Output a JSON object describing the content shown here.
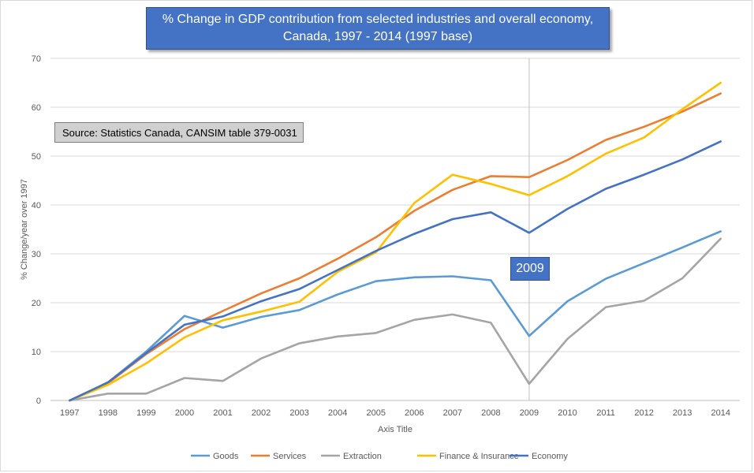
{
  "chart_data": {
    "type": "line",
    "title_line1": "% Change in GDP contribution from selected industries and overall economy,",
    "title_line2": "Canada, 1997 - 2014 (1997 base)",
    "source_note": "Source: Statistics Canada, CANSIM table  379-0031",
    "callout": "2009",
    "xlabel": "Axis Title",
    "ylabel": "% Change/year over 1997",
    "ylim": [
      0,
      70
    ],
    "yticks": [
      0,
      10,
      20,
      30,
      40,
      50,
      60,
      70
    ],
    "categories": [
      "1997",
      "1998",
      "1999",
      "2000",
      "2001",
      "2002",
      "2003",
      "2004",
      "2005",
      "2006",
      "2007",
      "2008",
      "2009",
      "2010",
      "2011",
      "2012",
      "2013",
      "2014"
    ],
    "legend_position": "bottom",
    "grid": true,
    "series": [
      {
        "name": "Goods",
        "color": "#5b9bd5",
        "values": [
          0,
          3.7,
          10.0,
          17.3,
          14.9,
          17.1,
          18.5,
          21.7,
          24.4,
          25.2,
          25.4,
          24.6,
          13.2,
          20.3,
          24.9,
          28.1,
          31.3,
          34.6
        ]
      },
      {
        "name": "Services",
        "color": "#ed7d31",
        "values": [
          0,
          3.5,
          9.5,
          14.6,
          18.3,
          21.9,
          25.0,
          29.0,
          33.4,
          38.8,
          43.1,
          45.9,
          45.7,
          49.2,
          53.3,
          56.0,
          59.1,
          62.8
        ]
      },
      {
        "name": "Extraction",
        "color": "#a5a5a5",
        "values": [
          0,
          1.4,
          1.4,
          4.6,
          4.0,
          8.6,
          11.7,
          13.1,
          13.8,
          16.5,
          17.6,
          15.9,
          3.4,
          12.6,
          19.1,
          20.4,
          25.0,
          33.1
        ]
      },
      {
        "name": "Finance & Insurance",
        "color": "#ffc000",
        "values": [
          0,
          3.2,
          7.6,
          12.9,
          16.4,
          18.2,
          20.2,
          26.3,
          30.3,
          40.4,
          46.2,
          44.3,
          42.0,
          45.9,
          50.5,
          53.8,
          59.6,
          65.0
        ]
      },
      {
        "name": "Economy",
        "color": "#4472c4",
        "values": [
          0,
          3.7,
          9.7,
          15.5,
          17.2,
          20.3,
          22.8,
          26.7,
          30.6,
          34.1,
          37.1,
          38.5,
          34.3,
          39.2,
          43.3,
          46.2,
          49.3,
          53.0
        ]
      }
    ]
  }
}
